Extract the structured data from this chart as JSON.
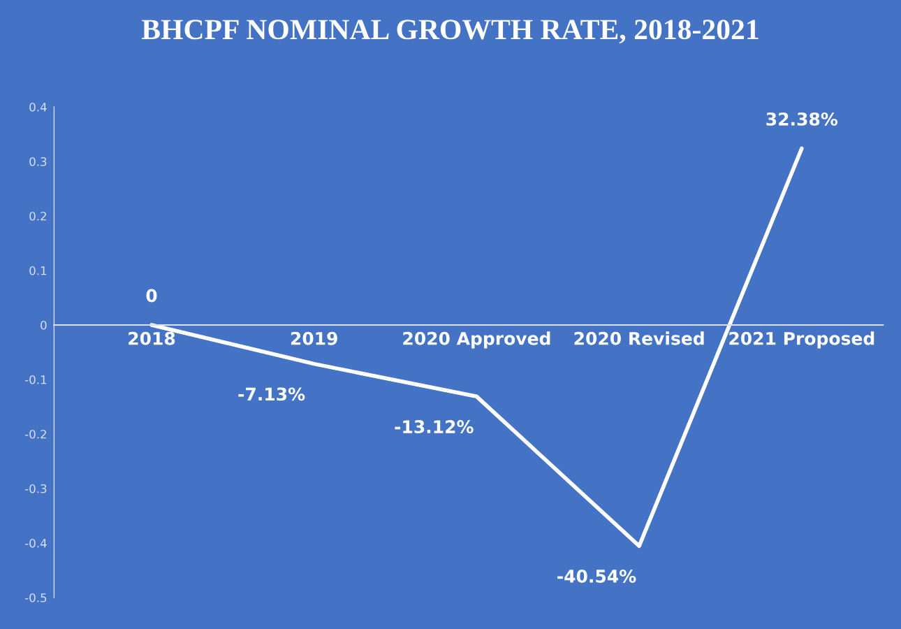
{
  "chart_data": {
    "type": "line",
    "title": "BHCPF NOMINAL GROWTH RATE, 2018-2021",
    "categories": [
      "2018",
      "2019",
      "2020 Approved",
      "2020 Revised",
      "2021 Proposed"
    ],
    "series": [
      {
        "color": "#ffffff",
        "values": [
          0,
          -0.0713,
          -0.1312,
          -0.4054,
          0.3238
        ],
        "value_labels": [
          "0",
          "-7.13%",
          "-13.12%",
          "-40.54%",
          "32.38%"
        ]
      }
    ],
    "ylim": [
      -0.5,
      0.4
    ],
    "yticks": [
      -0.5,
      -0.4,
      -0.3,
      -0.2,
      -0.1,
      0,
      0.1,
      0.2,
      0.3,
      0.4
    ],
    "grid": false,
    "legend": false,
    "marker": "none",
    "line_style": "solid"
  }
}
